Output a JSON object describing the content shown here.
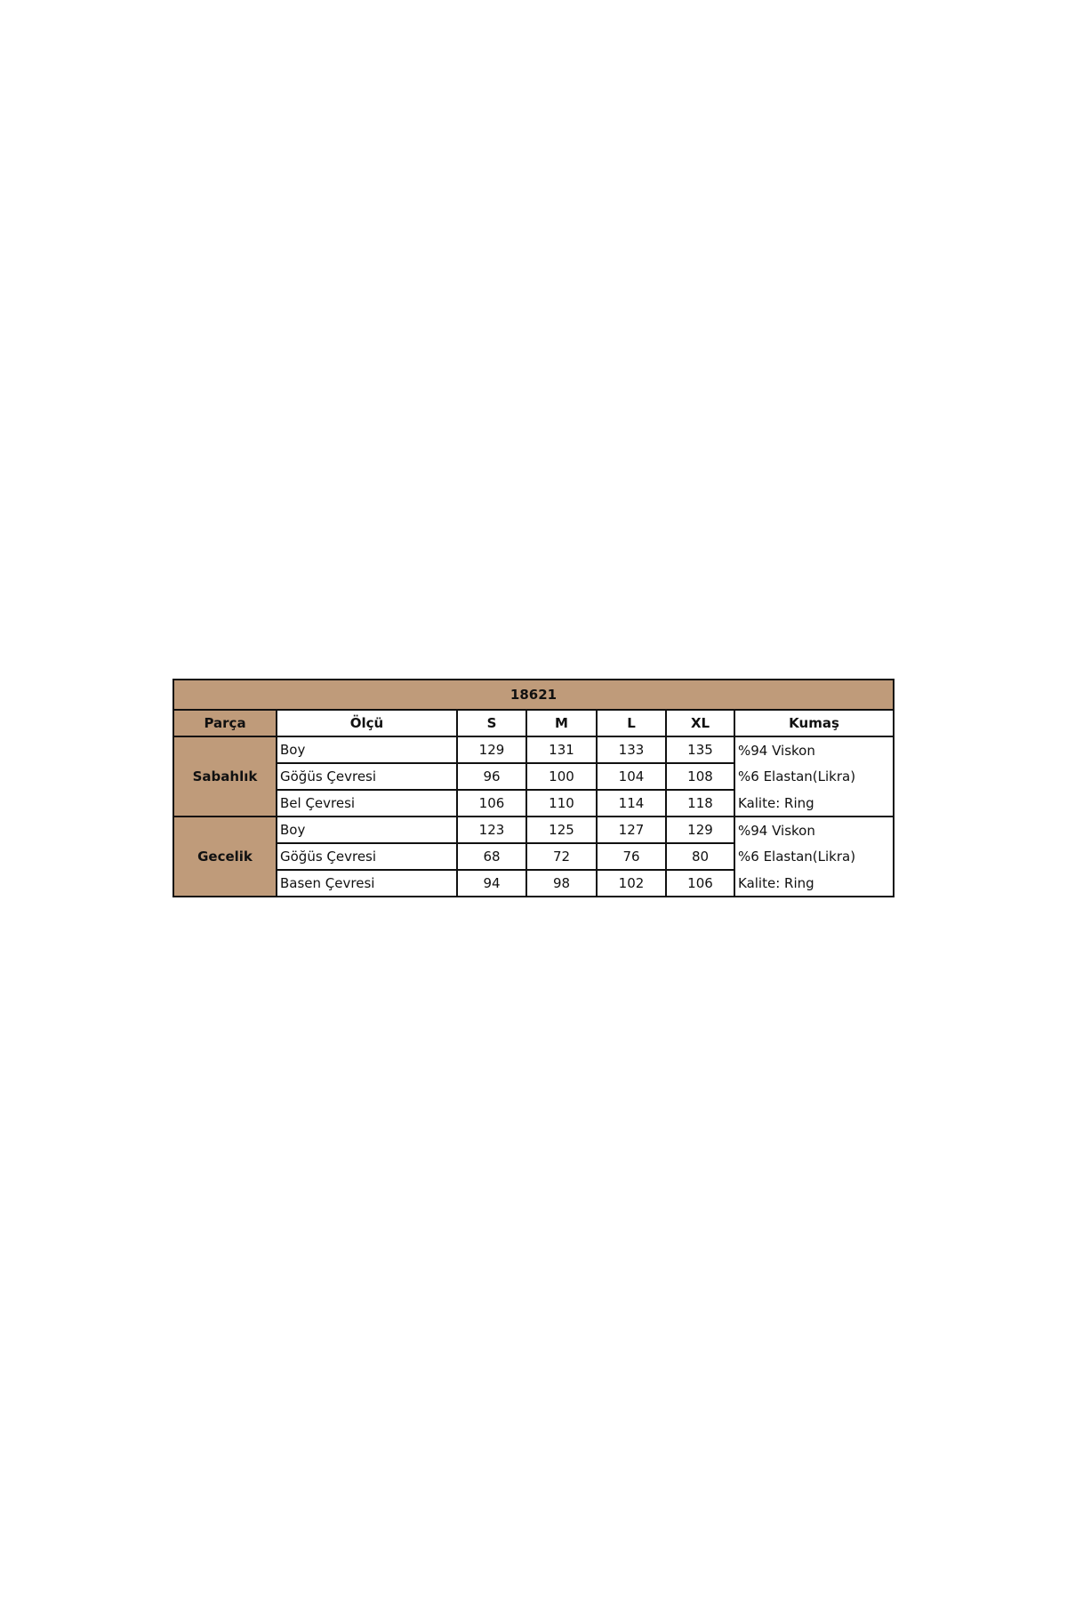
{
  "table": {
    "title": "18621",
    "headers": [
      "Parça",
      "Ölçü",
      "S",
      "M",
      "L",
      "XL",
      "Kumaş"
    ],
    "groups": [
      {
        "part": "Sabahlık",
        "rows": [
          {
            "measure": "Boy",
            "values": [
              "129",
              "131",
              "133",
              "135"
            ],
            "fabric": "%94 Viskon"
          },
          {
            "measure": "Göğüs Çevresi",
            "values": [
              "96",
              "100",
              "104",
              "108"
            ],
            "fabric": "%6 Elastan(Likra)"
          },
          {
            "measure": "Bel Çevresi",
            "values": [
              "106",
              "110",
              "114",
              "118"
            ],
            "fabric": "Kalite: Ring"
          }
        ]
      },
      {
        "part": "Gecelik",
        "rows": [
          {
            "measure": "Boy",
            "values": [
              "123",
              "125",
              "127",
              "129"
            ],
            "fabric": "%94 Viskon"
          },
          {
            "measure": "Göğüs Çevresi",
            "values": [
              "68",
              "72",
              "76",
              "80"
            ],
            "fabric": "%6 Elastan(Likra)"
          },
          {
            "measure": "Basen Çevresi",
            "values": [
              "94",
              "98",
              "102",
              "106"
            ],
            "fabric": "Kalite: Ring"
          }
        ]
      }
    ],
    "colors": {
      "header_fill": "#bf9b7a",
      "border": "#111111"
    }
  }
}
